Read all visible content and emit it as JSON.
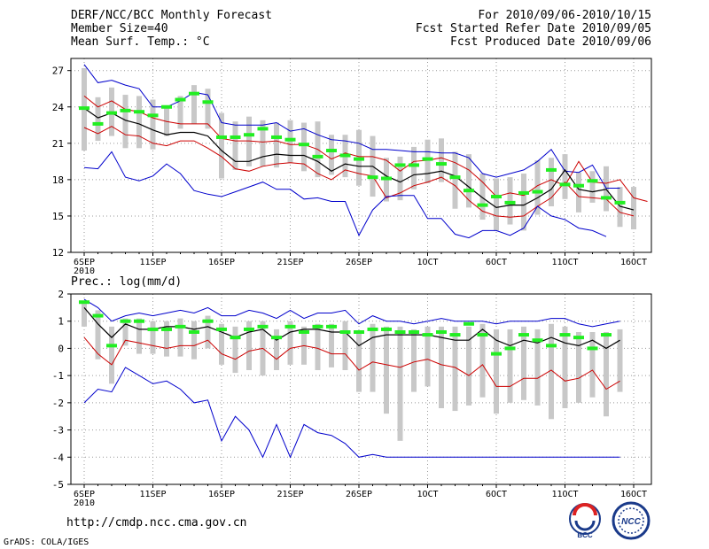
{
  "header": {
    "title": "DERF/NCC/BCC Monthly Forecast",
    "member_size": "Member Size=40",
    "variable_1": "Mean Surf. Temp.: °C",
    "period": "For 2010/09/06-2010/10/15",
    "started": "Fcst Started Refer Date 2010/09/05",
    "produced": "Fcst Produced Date 2010/09/06"
  },
  "footer": {
    "url": "http://cmdp.ncc.cma.gov.cn",
    "credit": "GrADS: COLA/IGES",
    "logo_left": "BCC",
    "logo_right": "NCC"
  },
  "colors": {
    "envelope": "#0000cc",
    "spread": "#cc0000",
    "mean": "#000000",
    "box": "#c8c8c8",
    "marker": "#22ee22",
    "grid": "#999999"
  },
  "chart_data": [
    {
      "type": "line",
      "title": "Mean Surf. Temp.: °C",
      "x_tick_labels": [
        "6SEP",
        "11SEP",
        "16SEP",
        "21SEP",
        "26SEP",
        "1OCT",
        "6OCT",
        "11OCT",
        "16OCT"
      ],
      "x_tick_days": [
        0,
        5,
        10,
        15,
        20,
        25,
        30,
        35,
        40
      ],
      "x_sublabel": "2010",
      "ylim": [
        12,
        28
      ],
      "y_ticks": [
        12,
        15,
        18,
        21,
        24,
        27
      ],
      "series": [
        {
          "name": "upper",
          "values": [
            27.5,
            26,
            26.2,
            25.8,
            25.5,
            24,
            24,
            24.5,
            25.2,
            25,
            22.7,
            22.5,
            22.5,
            22.5,
            22.7,
            22,
            22.2,
            21.7,
            21.3,
            21.2,
            21,
            20.5,
            20.5,
            20.4,
            20.3,
            20.3,
            20.2,
            20.2,
            19.8,
            18.5,
            18.2,
            18.5,
            18.8,
            19.5,
            20.5,
            18.7,
            18.6,
            19.2,
            17.3,
            17.3
          ]
        },
        {
          "name": "spread_high",
          "values": [
            24.9,
            24,
            24.5,
            23.8,
            23.6,
            23.1,
            22.8,
            22.6,
            22.6,
            22.6,
            21.4,
            21.2,
            21.2,
            21.1,
            21.2,
            20.9,
            20.9,
            20.5,
            19.7,
            20.2,
            19.9,
            19.9,
            19.6,
            18.7,
            19.5,
            19.6,
            19.8,
            19.4,
            18.8,
            17.8,
            16.6,
            16.9,
            16.7,
            17.5,
            18,
            17.5,
            19.5,
            17.8,
            17.7,
            18,
            16.5,
            16.2
          ]
        },
        {
          "name": "mean",
          "values": [
            23.9,
            23.1,
            23.5,
            22.9,
            22.6,
            22.1,
            21.7,
            21.9,
            21.9,
            21.6,
            20.4,
            19.5,
            19.5,
            19.9,
            20.1,
            20.0,
            20.0,
            19.5,
            18.7,
            19.3,
            19.1,
            19.1,
            18.3,
            17.8,
            18.4,
            18.5,
            18.7,
            18.3,
            17.4,
            16.5,
            15.7,
            15.9,
            15.9,
            16.5,
            17.2,
            18.8,
            17.2,
            17.0,
            17.2,
            15.8,
            15.5
          ]
        },
        {
          "name": "spread_low",
          "values": [
            22.3,
            21.8,
            22.4,
            21.7,
            21.6,
            21.0,
            20.8,
            21.2,
            21.2,
            20.6,
            19.9,
            18.9,
            18.7,
            19.1,
            19.3,
            19.4,
            19.3,
            18.5,
            18.0,
            18.8,
            18.5,
            18.3,
            16.5,
            16.9,
            17.5,
            17.8,
            18.2,
            17.5,
            16.3,
            15.4,
            15.0,
            14.9,
            15.0,
            15.8,
            16.5,
            17.8,
            16.6,
            16.5,
            16.4,
            15.3,
            15.0
          ]
        },
        {
          "name": "lower",
          "values": [
            19,
            18.9,
            20.3,
            18.2,
            17.9,
            18.3,
            19.3,
            18.5,
            17.1,
            16.8,
            16.6,
            17,
            17.4,
            17.8,
            17.2,
            17.2,
            16.4,
            16.5,
            16.2,
            16.2,
            13.4,
            15.5,
            16.6,
            16.7,
            16.7,
            14.8,
            14.8,
            13.5,
            13.2,
            13.8,
            13.8,
            13.4,
            14,
            15.8,
            15,
            14.7,
            14,
            13.8,
            13.3
          ]
        },
        {
          "name": "box_max",
          "values": [
            27.2,
            24.8,
            25.6,
            25.0,
            24.9,
            24.6,
            23.9,
            24.9,
            25.8,
            25.5,
            23.5,
            22.8,
            23.2,
            22.9,
            22.7,
            22.9,
            22.7,
            22.8,
            21.7,
            21.7,
            22.1,
            21.6,
            19.8,
            19.9,
            20.7,
            21.3,
            21.4,
            20.3,
            20.1,
            18.5,
            18.1,
            18.2,
            18.5,
            19.6,
            19.8,
            20.1,
            18.6,
            18.7,
            19.1,
            17.4,
            17.4
          ]
        },
        {
          "name": "box_min",
          "values": [
            20.4,
            21.2,
            21.6,
            20.6,
            20.6,
            20.5,
            21.6,
            22.2,
            22.6,
            22.2,
            18.1,
            18.8,
            19.1,
            19.1,
            19.0,
            19.4,
            18.7,
            18.2,
            18.4,
            18.2,
            17.5,
            16.6,
            16.2,
            16.3,
            17.2,
            17.7,
            17.8,
            15.6,
            15.7,
            14.7,
            13.8,
            14.3,
            13.8,
            15.1,
            15.8,
            16.4,
            15.3,
            16.1,
            15.4,
            14.1,
            13.9
          ]
        },
        {
          "name": "markers",
          "values": [
            23.9,
            22.6,
            23.5,
            23.7,
            23.6,
            23.3,
            24.0,
            24.6,
            25.1,
            24.4,
            21.5,
            21.5,
            21.7,
            22.2,
            21.5,
            21.3,
            20.9,
            19.9,
            20.4,
            20.0,
            19.7,
            18.2,
            18.1,
            19.2,
            19.2,
            19.7,
            19.3,
            18.2,
            17.1,
            15.9,
            16.6,
            16.1,
            16.9,
            17.0,
            18.8,
            17.6,
            17.5,
            17.9,
            16.5,
            16.1
          ]
        }
      ]
    },
    {
      "type": "line",
      "title": "Prec.: log(mm/d)",
      "x_tick_labels": [
        "6SEP",
        "11SEP",
        "16SEP",
        "21SEP",
        "26SEP",
        "1OCT",
        "6OCT",
        "11OCT",
        "16OCT"
      ],
      "x_tick_days": [
        0,
        5,
        10,
        15,
        20,
        25,
        30,
        35,
        40
      ],
      "x_sublabel": "2010",
      "ylim": [
        -5,
        2
      ],
      "y_ticks": [
        -5,
        -4,
        -3,
        -2,
        -1,
        0,
        1,
        2
      ],
      "series": [
        {
          "name": "upper",
          "values": [
            1.8,
            1.5,
            1,
            1.2,
            1.3,
            1.2,
            1.3,
            1.4,
            1.3,
            1.5,
            1.2,
            1.2,
            1.4,
            1.3,
            1.1,
            1.4,
            1.1,
            1.3,
            1.3,
            1.4,
            0.9,
            1.2,
            1,
            1,
            0.9,
            1,
            1.1,
            1,
            1,
            1,
            0.9,
            1,
            1,
            1,
            1.1,
            1.1,
            0.9,
            0.8,
            0.9,
            1
          ]
        },
        {
          "name": "mean",
          "values": [
            1.5,
            0.9,
            0.4,
            0.9,
            0.7,
            0.7,
            0.8,
            0.8,
            0.7,
            0.8,
            0.6,
            0.4,
            0.6,
            0.7,
            0.3,
            0.6,
            0.7,
            0.7,
            0.6,
            0.6,
            0.1,
            0.4,
            0.5,
            0.5,
            0.5,
            0.5,
            0.4,
            0.3,
            0.3,
            0.7,
            0.3,
            0.1,
            0.3,
            0.2,
            0.4,
            0.2,
            0.1,
            0.3,
            0,
            0.3
          ]
        },
        {
          "name": "spread_low",
          "values": [
            0.4,
            -0.2,
            -0.6,
            0.3,
            0.2,
            0.1,
            0,
            0.1,
            0.1,
            0.3,
            -0.2,
            -0.4,
            -0.1,
            0,
            -0.4,
            0,
            0.1,
            0,
            -0.2,
            -0.2,
            -0.8,
            -0.5,
            -0.6,
            -0.7,
            -0.5,
            -0.4,
            -0.6,
            -0.7,
            -1,
            -0.6,
            -1.4,
            -1.4,
            -1.1,
            -1.1,
            -0.8,
            -1.2,
            -1.1,
            -0.8,
            -1.5,
            -1.2
          ]
        },
        {
          "name": "lower",
          "values": [
            -2,
            -1.5,
            -1.6,
            -0.7,
            -1,
            -1.3,
            -1.2,
            -1.5,
            -2,
            -1.9,
            -3.4,
            -2.5,
            -3,
            -4,
            -2.8,
            -4,
            -2.8,
            -3.1,
            -3.2,
            -3.5,
            -4,
            -3.9,
            -4,
            -4,
            -4,
            -4,
            -4,
            -4,
            -4,
            -4,
            -4,
            -4,
            -4,
            -4,
            -4,
            -4,
            -4,
            -4,
            -4,
            -4
          ]
        },
        {
          "name": "box_max",
          "values": [
            1.7,
            1.4,
            0.8,
            1.1,
            1.1,
            1,
            1,
            1.1,
            1,
            1.2,
            0.9,
            0.8,
            1,
            1,
            0.7,
            1,
            0.8,
            0.9,
            0.9,
            1,
            0.6,
            0.9,
            0.8,
            0.8,
            0.7,
            0.8,
            0.8,
            0.8,
            0.8,
            0.9,
            0.7,
            0.7,
            0.8,
            0.7,
            0.9,
            0.8,
            0.6,
            0.6,
            0.6,
            0.7
          ]
        },
        {
          "name": "box_min",
          "values": [
            0.8,
            -0.4,
            -1.3,
            0.1,
            -0.2,
            -0.2,
            -0.3,
            -0.3,
            -0.4,
            0,
            -0.6,
            -0.9,
            -0.8,
            -1,
            -0.8,
            -0.6,
            -0.6,
            -0.8,
            -0.7,
            -0.8,
            -1.6,
            -1.6,
            -2.4,
            -3.4,
            -1.6,
            -1.4,
            -2.2,
            -2.3,
            -2.1,
            -1.8,
            -2.4,
            -2,
            -1.9,
            -2.1,
            -2.6,
            -2.2,
            -2,
            -1.8,
            -2.5,
            -1.6
          ]
        },
        {
          "name": "markers",
          "values": [
            1.7,
            1.2,
            0.1,
            1,
            1,
            0.7,
            0.7,
            0.8,
            0.6,
            1,
            0.7,
            0.4,
            0.7,
            0.8,
            0.4,
            0.8,
            0.6,
            0.8,
            0.8,
            0.6,
            0.6,
            0.7,
            0.7,
            0.6,
            0.6,
            0.5,
            0.6,
            0.5,
            0.9,
            0.5,
            -0.2,
            0,
            0.5,
            0.3,
            0.1,
            0.5,
            0.4,
            0,
            0.5
          ]
        }
      ]
    }
  ]
}
